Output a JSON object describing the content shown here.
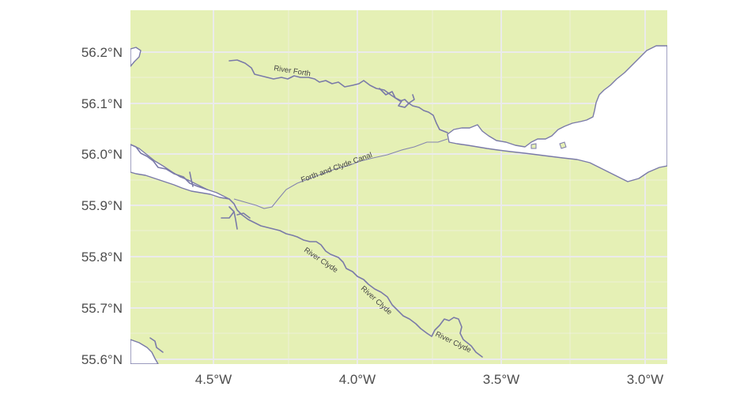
{
  "map": {
    "land_color": "#e5f0b5",
    "water_color": "#ffffff",
    "waterway_color": "#7a7aa8",
    "x_ticks": [
      {
        "value": -4.5,
        "label": "4.5°W"
      },
      {
        "value": -4.0,
        "label": "4.0°W"
      },
      {
        "value": -3.5,
        "label": "3.5°W"
      },
      {
        "value": -3.0,
        "label": "3.0°W"
      }
    ],
    "y_ticks": [
      {
        "value": 56.2,
        "label": "56.2°N"
      },
      {
        "value": 56.1,
        "label": "56.1°N"
      },
      {
        "value": 56.0,
        "label": "56.0°N"
      },
      {
        "value": 55.9,
        "label": "55.9°N"
      },
      {
        "value": 55.8,
        "label": "55.8°N"
      },
      {
        "value": 55.7,
        "label": "55.7°N"
      },
      {
        "value": 55.6,
        "label": "55.6°N"
      }
    ],
    "features": {
      "river_forth": "River Forth",
      "canal": "Forth and Clyde Canal",
      "river_clyde_1": "River Clyde",
      "river_clyde_2": "River Clyde",
      "river_clyde_3": "River Clyde"
    }
  }
}
